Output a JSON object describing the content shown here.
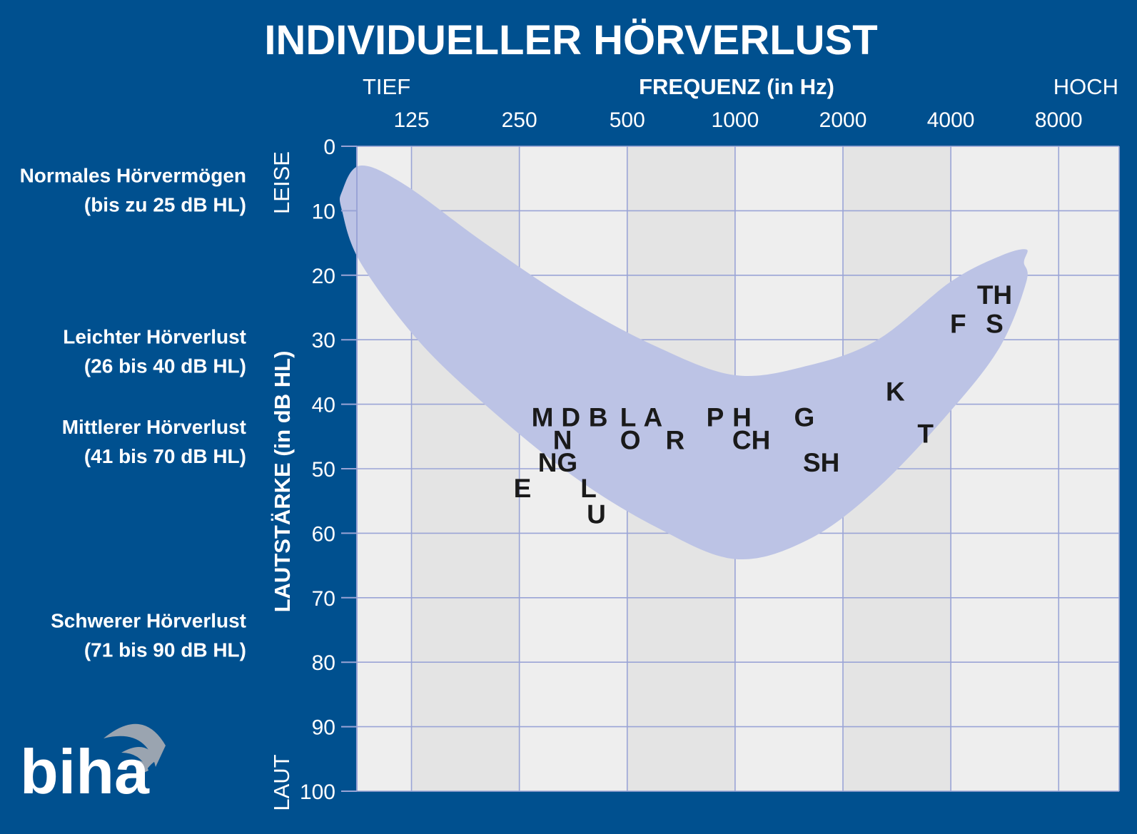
{
  "chart_data": {
    "type": "scatter",
    "title": "INDIVIDUELLER HÖRVERLUST",
    "xlabel": "FREQUENZ (in Hz)",
    "ylabel": "LAUTSTÄRKE (in dB HL)",
    "x_low_label": "TIEF",
    "x_high_label": "HOCH",
    "y_low_label": "LEISE",
    "y_high_label": "LAUT",
    "x_scale": "log2",
    "x_ticks": [
      125,
      250,
      500,
      1000,
      2000,
      4000,
      8000
    ],
    "xlim": [
      88,
      11800
    ],
    "y_ticks": [
      0,
      10,
      20,
      30,
      40,
      50,
      60,
      70,
      80,
      90,
      100
    ],
    "ylim": [
      0,
      100
    ],
    "y_inverted": true,
    "grid": true,
    "hearing_loss_categories": [
      {
        "name": "Normales Hörvermögen",
        "range": "(bis zu 25 dB HL)",
        "y": 4.5
      },
      {
        "name": "Leichter Hörverlust",
        "range": "(26 bis 40 dB HL)",
        "y": 29.5
      },
      {
        "name": "Mittlerer Hörverlust",
        "range": "(41 bis 70 dB HL)",
        "y": 43.5
      },
      {
        "name": "Schwerer Hörverlust",
        "range": "(71 bis 90 dB HL)",
        "y": 73.5
      }
    ],
    "speech_banana": {
      "upper": [
        [
          80,
          7
        ],
        [
          90,
          3
        ],
        [
          120,
          6
        ],
        [
          200,
          15
        ],
        [
          350,
          24
        ],
        [
          600,
          31
        ],
        [
          1000,
          35.5
        ],
        [
          1600,
          34
        ],
        [
          2500,
          30
        ],
        [
          4000,
          21
        ],
        [
          5500,
          17
        ],
        [
          6500,
          16
        ]
      ],
      "lower": [
        [
          80,
          10
        ],
        [
          90,
          18
        ],
        [
          130,
          30
        ],
        [
          200,
          40
        ],
        [
          350,
          51
        ],
        [
          600,
          59
        ],
        [
          1000,
          64
        ],
        [
          1600,
          61
        ],
        [
          2500,
          53
        ],
        [
          4000,
          41
        ],
        [
          5500,
          31
        ],
        [
          6500,
          21
        ],
        [
          6400,
          18
        ]
      ]
    },
    "points": [
      {
        "label": "M",
        "x": 290,
        "y": 42
      },
      {
        "label": "D",
        "x": 348,
        "y": 42
      },
      {
        "label": "B",
        "x": 415,
        "y": 42
      },
      {
        "label": "L",
        "x": 503,
        "y": 42
      },
      {
        "label": "A",
        "x": 590,
        "y": 42
      },
      {
        "label": "P",
        "x": 880,
        "y": 42
      },
      {
        "label": "H",
        "x": 1045,
        "y": 42
      },
      {
        "label": "G",
        "x": 1560,
        "y": 42
      },
      {
        "label": "N",
        "x": 330,
        "y": 45.5
      },
      {
        "label": "O",
        "x": 510,
        "y": 45.5
      },
      {
        "label": "R",
        "x": 680,
        "y": 45.5
      },
      {
        "label": "CH",
        "x": 1110,
        "y": 45.5
      },
      {
        "label": "T",
        "x": 3400,
        "y": 44.5
      },
      {
        "label": "NG",
        "x": 320,
        "y": 49
      },
      {
        "label": "SH",
        "x": 1740,
        "y": 49
      },
      {
        "label": "E",
        "x": 255,
        "y": 53
      },
      {
        "label": "L",
        "x": 390,
        "y": 53
      },
      {
        "label": "U",
        "x": 410,
        "y": 57
      },
      {
        "label": "K",
        "x": 2800,
        "y": 38
      },
      {
        "label": "TH",
        "x": 5300,
        "y": 23
      },
      {
        "label": "F",
        "x": 4190,
        "y": 27.5
      },
      {
        "label": "S",
        "x": 5300,
        "y": 27.5
      }
    ]
  },
  "logo": {
    "text": "biha"
  },
  "colors": {
    "background": "#00508f",
    "plot_area": "#eeeeee",
    "plot_band": "#e4e4e4",
    "grid": "#9aa4d6",
    "banana": "#bcc3e5",
    "point_text": "#1a1a1a",
    "text": "#ffffff",
    "logo_swoosh": "#9aa4b0"
  }
}
